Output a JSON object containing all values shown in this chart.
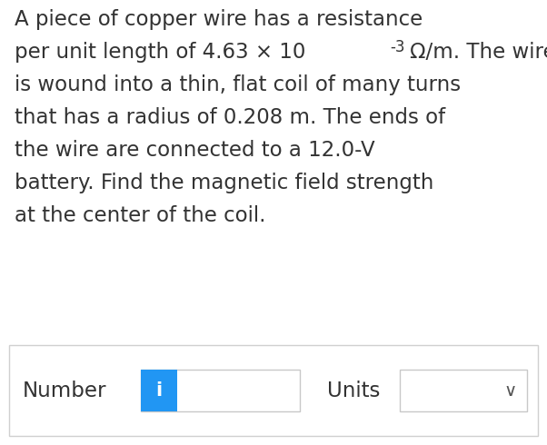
{
  "background_color": "#ffffff",
  "text_color": "#333333",
  "line1": "A piece of copper wire has a resistance",
  "line2_pre": "per unit length of 4.63 × 10",
  "line2_sup": "-3",
  "line2_post": "Ω/m. The wire",
  "line3": "is wound into a thin, flat coil of many turns",
  "line4": "that has a radius of 0.208 m. The ends of",
  "line5": "the wire are connected to a 12.0-V",
  "line6": "battery. Find the magnetic field strength",
  "line7": "at the center of the coil.",
  "number_label": "Number",
  "units_label": "Units",
  "info_button_color": "#2196F3",
  "info_button_text": "i",
  "info_button_text_color": "#ffffff",
  "box_border_color": "#c8c8c8",
  "chevron_char": "∨",
  "font_size_main": 16.5,
  "font_size_sup": 12.0,
  "font_size_bottom": 16.5,
  "panel_border_color": "#d0d0d0",
  "chevron_color": "#555555"
}
